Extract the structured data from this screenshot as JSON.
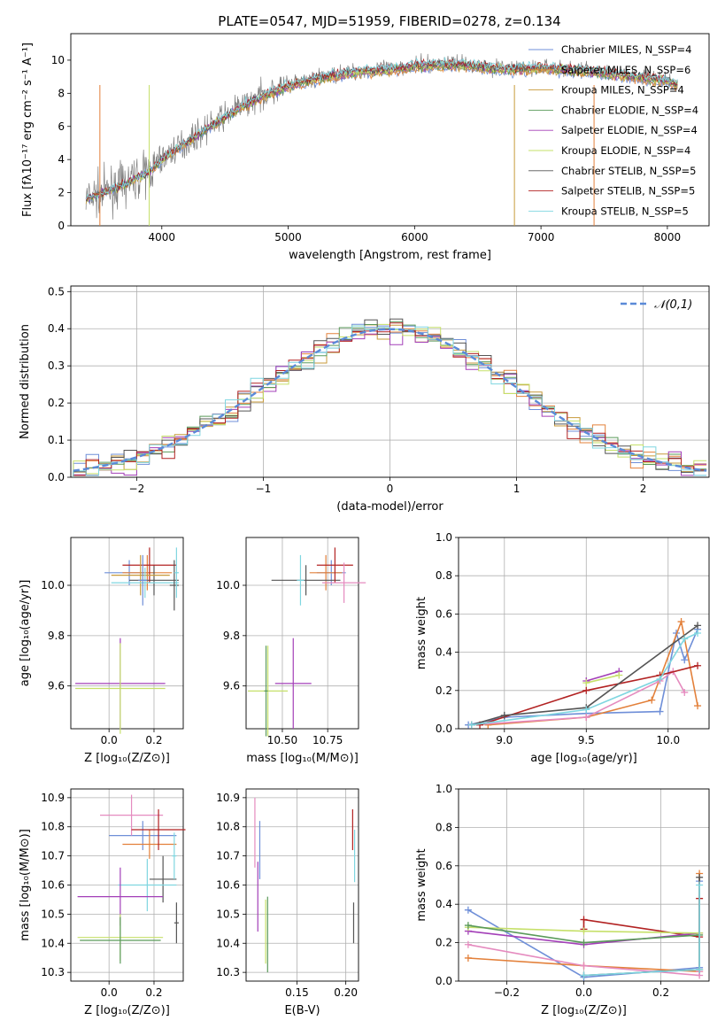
{
  "page_title": "PLATE=0547, MJD=51959, FIBERID=0278, z=0.134",
  "model_colors": [
    "#6f8fd8",
    "#e3803a",
    "#c79a3a",
    "#5a9a5a",
    "#a33fb8",
    "#c6e06a",
    "#555555",
    "#b22222",
    "#7fd6e0"
  ],
  "chart_data": [
    {
      "id": "spectrum",
      "type": "line",
      "title": "PLATE=0547, MJD=51959, FIBERID=0278, z=0.134",
      "xlabel": "wavelength [Angstrom, rest frame]",
      "ylabel": "Flux [fλ10⁻¹⁷ erg cm⁻² s⁻¹ A⁻¹]",
      "xlim": [
        3280,
        8330
      ],
      "ylim": [
        0,
        11.6
      ],
      "xticks": [
        4000,
        5000,
        6000,
        7000,
        8000
      ],
      "yticks": [
        0,
        2,
        4,
        6,
        8,
        10
      ],
      "grid": false,
      "legend_position": "top-right",
      "legend": [
        "Chabrier MILES, N_SSP=4",
        "Salpeter MILES, N_SSP=6",
        "Kroupa MILES, N_SSP=4",
        "Chabrier ELODIE, N_SSP=4",
        "Salpeter ELODIE, N_SSP=4",
        "Kroupa ELODIE, N_SSP=4",
        "Chabrier STELIB, N_SSP=5",
        "Salpeter STELIB, N_SSP=5",
        "Kroupa STELIB, N_SSP=5"
      ],
      "data_color": "#808080",
      "continuum": {
        "x": [
          3400,
          3500,
          3600,
          3700,
          3800,
          3900,
          4000,
          4100,
          4200,
          4300,
          4400,
          4500,
          4600,
          4700,
          4800,
          4900,
          5000,
          5200,
          5400,
          5600,
          5800,
          6000,
          6200,
          6400,
          6600,
          6800,
          7000,
          7200,
          7400,
          7600,
          7800,
          8000,
          8080
        ],
        "y": [
          1.6,
          1.9,
          2.2,
          2.5,
          2.9,
          3.3,
          4.0,
          4.6,
          5.1,
          5.6,
          6.1,
          6.6,
          7.1,
          7.5,
          7.9,
          8.2,
          8.5,
          8.9,
          9.2,
          9.4,
          9.5,
          9.7,
          9.8,
          9.8,
          9.6,
          9.5,
          9.6,
          9.5,
          9.4,
          9.2,
          9.0,
          8.8,
          8.6
        ]
      }
    },
    {
      "id": "residuals",
      "type": "histogram",
      "xlabel": "(data-model)/error",
      "ylabel": "Normed distribution",
      "xlim": [
        -2.52,
        2.52
      ],
      "ylim": [
        0,
        0.515
      ],
      "xticks": [
        -2,
        -1,
        0,
        1,
        2
      ],
      "xtick_labels": [
        "−2",
        "−1",
        "0",
        "1",
        "2"
      ],
      "yticks": [
        0,
        0.1,
        0.2,
        0.3,
        0.4,
        0.5
      ],
      "ytick_labels": [
        "0.0",
        "0.1",
        "0.2",
        "0.3",
        "0.4",
        "0.5"
      ],
      "grid": true,
      "legend_position": "top-right",
      "legend": [
        "𝒩(0,1)"
      ],
      "gaussian_color": "#5b8ad8",
      "bin_width": 0.1,
      "bin_start": -2.5
    },
    {
      "id": "age_vs_Z",
      "type": "scatter",
      "xlabel": "Z [log₁₀(Z/Z⊙)]",
      "ylabel": "age  [log₁₀(age/yr)]",
      "xlim": [
        -0.17,
        0.33
      ],
      "ylim": [
        9.43,
        10.19
      ],
      "xticks": [
        0.0,
        0.2
      ],
      "xtick_labels": [
        "0.0",
        "0.2"
      ],
      "yticks": [
        9.6,
        9.8,
        10.0
      ],
      "ytick_labels": [
        "9.6",
        "9.8",
        "10.0"
      ],
      "grid": true,
      "points": [
        {
          "c": 0,
          "x": 0.09,
          "xerr": 0.11,
          "y": 10.05,
          "yerr": 0.05
        },
        {
          "c": 1,
          "x": 0.17,
          "xerr": 0.11,
          "y": 10.05,
          "yerr": 0.07
        },
        {
          "c": 6,
          "x": 0.2,
          "xerr": 0.11,
          "y": 10.02,
          "yerr": 0.06
        },
        {
          "c": 7,
          "x": 0.18,
          "xerr": 0.12,
          "y": 10.08,
          "yerr": 0.07
        },
        {
          "c": 2,
          "x": 0.14,
          "xerr": 0.13,
          "y": 10.04,
          "yerr": 0.08
        },
        {
          "c": 8,
          "x": 0.16,
          "xerr": 0.15,
          "y": 10.01,
          "yerr": 0.06
        },
        {
          "c": 6,
          "x": 0.29,
          "xerr": 0.02,
          "y": 10.0,
          "yerr": 0.1
        },
        {
          "c": 4,
          "x": 0.05,
          "xerr": 0.2,
          "y": 9.61,
          "yerr": 0.18
        },
        {
          "c": 5,
          "x": 0.05,
          "xerr": 0.2,
          "y": 9.59,
          "yerr": 0.18
        },
        {
          "c": 0,
          "x": 0.15,
          "xerr": 0.02,
          "y": 10.02,
          "yerr": 0.1
        },
        {
          "c": 8,
          "x": 0.3,
          "xerr": 0.01,
          "y": 10.05,
          "yerr": 0.1
        }
      ]
    },
    {
      "id": "age_vs_mass",
      "type": "scatter",
      "xlabel": "mass [log₁₀(M/M⊙)]",
      "ylabel": "",
      "xlim": [
        10.3,
        10.92
      ],
      "ylim": [
        9.43,
        10.19
      ],
      "xticks": [
        10.5,
        10.75
      ],
      "xtick_labels": [
        "10.50",
        "10.75"
      ],
      "yticks": [
        9.6,
        9.8,
        10.0
      ],
      "ytick_labels": [
        "9.6",
        "9.8",
        "10.0"
      ],
      "grid": true,
      "points": [
        {
          "c": 0,
          "x": 10.77,
          "xerr": 0.08,
          "y": 10.05,
          "yerr": 0.05
        },
        {
          "c": 1,
          "x": 10.74,
          "xerr": 0.09,
          "y": 10.05,
          "yerr": 0.07
        },
        {
          "c": 6,
          "x": 10.63,
          "xerr": 0.19,
          "y": 10.02,
          "yerr": 0.06
        },
        {
          "c": 7,
          "x": 10.79,
          "xerr": 0.1,
          "y": 10.08,
          "yerr": 0.07
        },
        {
          "c": 9,
          "x": 10.84,
          "xerr": 0.12,
          "y": 10.01,
          "yerr": 0.08
        },
        {
          "c": 8,
          "x": 10.6,
          "xerr": 0.02,
          "y": 10.02,
          "yerr": 0.1
        },
        {
          "c": 5,
          "x": 10.42,
          "xerr": 0.11,
          "y": 9.58,
          "yerr": 0.18
        },
        {
          "c": 3,
          "x": 10.41,
          "xerr": 0.01,
          "y": 9.58,
          "yerr": 0.18
        },
        {
          "c": 4,
          "x": 10.56,
          "xerr": 0.1,
          "y": 9.61,
          "yerr": 0.18
        }
      ]
    },
    {
      "id": "weight_vs_age",
      "type": "line",
      "xlabel": "age  [log₁₀(age/yr)]",
      "ylabel": "mass weight",
      "xlim": [
        8.72,
        10.25
      ],
      "ylim": [
        0,
        1.0
      ],
      "xticks": [
        9.0,
        9.5,
        10.0
      ],
      "xtick_labels": [
        "9.0",
        "9.5",
        "10.0"
      ],
      "yticks": [
        0,
        0.2,
        0.4,
        0.6,
        0.8,
        1.0
      ],
      "ytick_labels": [
        "0.0",
        "0.2",
        "0.4",
        "0.6",
        "0.8",
        "1.0"
      ],
      "grid": true,
      "series": [
        {
          "c": 0,
          "x": [
            8.78,
            9.0,
            9.5,
            9.95,
            10.05,
            10.1,
            10.18
          ],
          "y": [
            0.02,
            0.06,
            0.08,
            0.09,
            0.5,
            0.36,
            0.52
          ]
        },
        {
          "c": 1,
          "x": 8.9,
          "y": 0.02,
          "x2": [
            8.9,
            9.5,
            9.9,
            10.08,
            10.18
          ],
          "y2": [
            0.02,
            0.06,
            0.15,
            0.56,
            0.12
          ]
        },
        {
          "c": 9,
          "x": [
            8.8,
            9.5,
            9.95,
            10.03,
            10.1
          ],
          "y": [
            0.02,
            0.06,
            0.25,
            0.3,
            0.19
          ]
        },
        {
          "c": 7,
          "x": [
            8.85,
            9.5,
            9.95,
            10.18
          ],
          "y": [
            0.02,
            0.2,
            0.28,
            0.33
          ]
        },
        {
          "c": 6,
          "x": [
            8.8,
            9.0,
            9.5,
            10.18
          ],
          "y": [
            0.02,
            0.07,
            0.11,
            0.54
          ]
        },
        {
          "c": 4,
          "x": [
            9.5,
            9.7
          ],
          "y": [
            0.25,
            0.3
          ]
        },
        {
          "c": 5,
          "x": [
            9.5,
            9.7
          ],
          "y": [
            0.24,
            0.28
          ]
        },
        {
          "c": 8,
          "x": [
            8.8,
            9.5,
            9.95,
            10.1,
            10.18
          ],
          "y": [
            0.02,
            0.1,
            0.26,
            0.47,
            0.5
          ]
        }
      ]
    },
    {
      "id": "mass_vs_Z",
      "type": "scatter",
      "xlabel": "Z [log₁₀(Z/Z⊙)]",
      "ylabel": "mass [log₁₀(M/M⊙)]",
      "xlim": [
        -0.17,
        0.33
      ],
      "ylim": [
        10.27,
        10.93
      ],
      "xticks": [
        0.0,
        0.2
      ],
      "xtick_labels": [
        "0.0",
        "0.2"
      ],
      "yticks": [
        10.3,
        10.4,
        10.5,
        10.6,
        10.7,
        10.8,
        10.9
      ],
      "ytick_labels": [
        "10.3",
        "10.4",
        "10.5",
        "10.6",
        "10.7",
        "10.8",
        "10.9"
      ],
      "grid": true,
      "points": [
        {
          "c": 0,
          "x": 0.15,
          "xerr": 0.15,
          "y": 10.77,
          "yerr": 0.05
        },
        {
          "c": 1,
          "x": 0.18,
          "xerr": 0.12,
          "y": 10.74,
          "yerr": 0.05
        },
        {
          "c": 9,
          "x": 0.1,
          "xerr": 0.14,
          "y": 10.84,
          "yerr": 0.07
        },
        {
          "c": 7,
          "x": 0.22,
          "xerr": 0.12,
          "y": 10.79,
          "yerr": 0.07
        },
        {
          "c": 6,
          "x": 0.24,
          "xerr": 0.06,
          "y": 10.62,
          "yerr": 0.08
        },
        {
          "c": 8,
          "x": 0.17,
          "xerr": 0.13,
          "y": 10.6,
          "yerr": 0.09
        },
        {
          "c": 4,
          "x": 0.05,
          "xerr": 0.19,
          "y": 10.56,
          "yerr": 0.1
        },
        {
          "c": 5,
          "x": 0.05,
          "xerr": 0.19,
          "y": 10.42,
          "yerr": 0.08
        },
        {
          "c": 3,
          "x": 0.05,
          "xerr": 0.18,
          "y": 10.41,
          "yerr": 0.08
        },
        {
          "c": 6,
          "x": 0.3,
          "xerr": 0.01,
          "y": 10.47,
          "yerr": 0.07
        },
        {
          "c": 8,
          "x": 0.29,
          "xerr": 0.01,
          "y": 10.7,
          "yerr": 0.08
        }
      ]
    },
    {
      "id": "mass_vs_EBV",
      "type": "scatter",
      "xlabel": "E(B-V)",
      "ylabel": "",
      "xlim": [
        0.098,
        0.213
      ],
      "ylim": [
        10.27,
        10.93
      ],
      "xticks": [
        0.15,
        0.2
      ],
      "xtick_labels": [
        "0.15",
        "0.20"
      ],
      "yticks": [
        10.3,
        10.4,
        10.5,
        10.6,
        10.7,
        10.8,
        10.9
      ],
      "ytick_labels": [
        "10.3",
        "10.4",
        "10.5",
        "10.6",
        "10.7",
        "10.8",
        "10.9"
      ],
      "grid": true,
      "points": [
        {
          "c": 9,
          "x": 0.107,
          "y": 10.78,
          "yerr": 0.12
        },
        {
          "c": 4,
          "x": 0.11,
          "y": 10.56,
          "yerr": 0.12
        },
        {
          "c": 0,
          "x": 0.112,
          "y": 10.72,
          "yerr": 0.1
        },
        {
          "c": 5,
          "x": 0.118,
          "y": 10.44,
          "yerr": 0.11
        },
        {
          "c": 3,
          "x": 0.12,
          "y": 10.43,
          "yerr": 0.13
        },
        {
          "c": 7,
          "x": 0.207,
          "y": 10.79,
          "yerr": 0.07
        },
        {
          "c": 6,
          "x": 0.208,
          "y": 10.47,
          "yerr": 0.07
        },
        {
          "c": 8,
          "x": 0.209,
          "y": 10.7,
          "yerr": 0.09
        }
      ]
    },
    {
      "id": "weight_vs_Z",
      "type": "line",
      "xlabel": "Z [log₁₀(Z/Z⊙)]",
      "ylabel": "mass weight",
      "xlim": [
        -0.325,
        0.325
      ],
      "ylim": [
        0,
        1.0
      ],
      "xticks": [
        -0.2,
        0.0,
        0.2
      ],
      "xtick_labels": [
        "−0.2",
        "0.0",
        "0.2"
      ],
      "yticks": [
        0,
        0.2,
        0.4,
        0.6,
        0.8,
        1.0
      ],
      "ytick_labels": [
        "0.0",
        "0.2",
        "0.4",
        "0.6",
        "0.8",
        "1.0"
      ],
      "grid": true,
      "series": [
        {
          "c": 0,
          "x": [
            -0.3,
            0.0,
            0.3,
            0.3
          ],
          "y": [
            0.37,
            0.02,
            0.07,
            0.52
          ]
        },
        {
          "c": 1,
          "x": [
            -0.3,
            0.0,
            0.3,
            0.3
          ],
          "y": [
            0.12,
            0.08,
            0.05,
            0.56
          ]
        },
        {
          "c": 9,
          "x": [
            -0.3,
            0.0,
            0.3,
            0.3
          ],
          "y": [
            0.19,
            0.08,
            0.03,
            0.05
          ]
        },
        {
          "c": 7,
          "x": [
            0.0,
            0.0,
            0.3,
            0.3
          ],
          "y": [
            0.27,
            0.32,
            0.23,
            0.43
          ]
        },
        {
          "c": 4,
          "x": [
            -0.3,
            0.0,
            0.3
          ],
          "y": [
            0.26,
            0.19,
            0.25
          ]
        },
        {
          "c": 5,
          "x": [
            -0.3,
            0.0,
            0.3
          ],
          "y": [
            0.28,
            0.26,
            0.25
          ]
        },
        {
          "c": 3,
          "x": [
            -0.3,
            0.0,
            0.3
          ],
          "y": [
            0.29,
            0.2,
            0.24
          ]
        },
        {
          "c": 6,
          "x": [
            0.0,
            0.3,
            0.3
          ],
          "y": [
            0.03,
            0.06,
            0.54
          ]
        },
        {
          "c": 8,
          "x": [
            0.0,
            0.3,
            0.3
          ],
          "y": [
            0.03,
            0.06,
            0.5
          ]
        }
      ]
    }
  ]
}
